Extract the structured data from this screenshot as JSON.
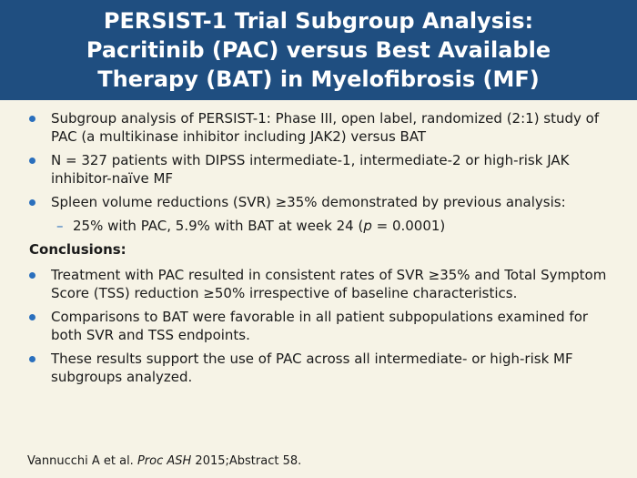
{
  "title": {
    "line1": "PERSIST-1 Trial Subgroup Analysis:",
    "line2": "Pacritinib (PAC) versus Best Available",
    "line3": "Therapy (BAT) in Myelofibrosis (MF)"
  },
  "bullets": [
    "Subgroup analysis of PERSIST-1: Phase III, open label, randomized (2:1) study of PAC (a multikinase inhibitor including JAK2) versus BAT",
    "N = 327 patients with DIPSS intermediate-1, intermediate-2 or high-risk JAK inhibitor-naïve MF",
    "Spleen volume reductions (SVR) ≥35% demonstrated by previous analysis:"
  ],
  "sub_bullet": {
    "dash": "–",
    "before": "25% with PAC, 5.9% with BAT at week 24 (",
    "italic": "p",
    "after": " = 0.0001)"
  },
  "conclusions_heading": "Conclusions:",
  "conclusions": [
    "Treatment with PAC resulted in consistent rates of SVR ≥35% and Total Symptom Score (TSS) reduction ≥50% irrespective of baseline characteristics.",
    "Comparisons to BAT were favorable in all patient subpopulations examined for both SVR and TSS endpoints.",
    "These results support the use of PAC across all intermediate- or high-risk MF subgroups analyzed."
  ],
  "footer": {
    "author": "Vannucchi A et al. ",
    "journal": "Proc ASH",
    "rest": " 2015;Abstract 58."
  },
  "colors": {
    "title_bg": "#1f4e80",
    "bullet": "#2a6fbd",
    "background": "#f6f3e6"
  }
}
